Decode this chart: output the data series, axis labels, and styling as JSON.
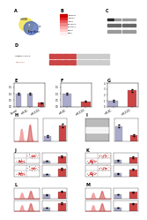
{
  "bg_color": "#ffffff",
  "bar_nc_color": "#aaaacc",
  "bar_5100_color": "#cc4444",
  "genes": [
    "HMBOX1",
    "NDRG1",
    "RGS4",
    "SMARCA2",
    "STARD13",
    "VEGFA",
    "ZEB1"
  ],
  "heatmap_colors": [
    "#cc0000",
    "#dd2222",
    "#ee5555",
    "#ee8888",
    "#ffaaaa",
    "#ffcccc",
    "#ffeeee"
  ]
}
